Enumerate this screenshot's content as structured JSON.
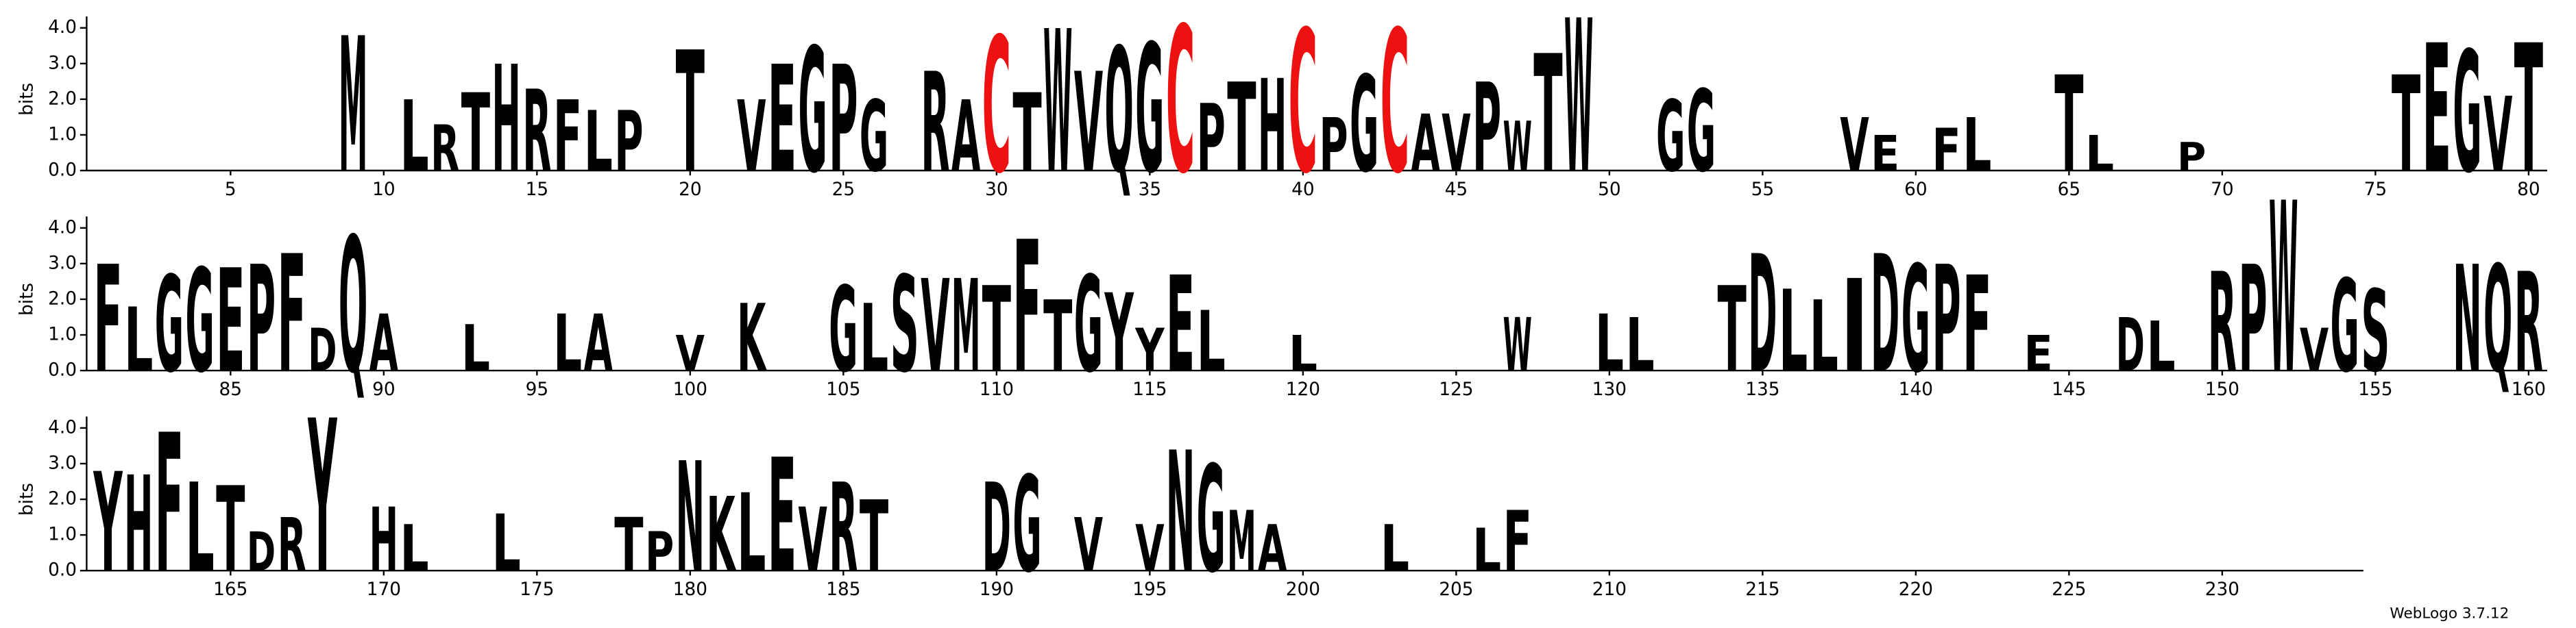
{
  "chart_data": {
    "type": "sequence-logo",
    "y_label": "bits",
    "credit": "WebLogo 3.7.12",
    "xlim": [
      0.5,
      234.5
    ],
    "ylim": [
      0,
      4.32
    ],
    "yticks": [
      {
        "value": 0,
        "label": "0.0"
      },
      {
        "value": 1,
        "label": "1.0"
      },
      {
        "value": 2,
        "label": "2.0"
      },
      {
        "value": 3,
        "label": "3.0"
      },
      {
        "value": 4,
        "label": "4.0"
      }
    ],
    "xticks": [
      5,
      10,
      15,
      20,
      25,
      30,
      35,
      40,
      45,
      50,
      55,
      60,
      65,
      70,
      75,
      80,
      85,
      90,
      95,
      100,
      105,
      110,
      115,
      120,
      125,
      130,
      135,
      140,
      145,
      150,
      155,
      160,
      165,
      170,
      175,
      180,
      185,
      190,
      195,
      200,
      205,
      210,
      215,
      220,
      225,
      230
    ],
    "color": "#000000",
    "letter_colors": {
      "C": "#ee1111"
    },
    "positions": [
      9,
      11,
      12,
      13,
      14,
      15,
      16,
      17,
      18,
      20,
      22,
      23,
      24,
      25,
      26,
      28,
      29,
      30,
      31,
      32,
      33,
      34,
      35,
      36,
      37,
      38,
      39,
      40,
      41,
      42,
      43,
      44,
      45,
      46,
      47,
      48,
      49,
      52,
      53,
      58,
      59,
      61,
      62,
      65,
      66,
      69,
      76,
      77,
      78,
      79,
      80,
      81,
      82,
      83,
      84,
      85,
      86,
      87,
      88,
      89,
      90,
      93,
      96,
      97,
      100,
      102,
      105,
      106,
      107,
      108,
      109,
      110,
      111,
      112,
      113,
      114,
      115,
      116,
      117,
      120,
      127,
      130,
      131,
      134,
      135,
      136,
      137,
      138,
      139,
      140,
      141,
      142,
      144,
      147,
      148,
      150,
      151,
      152,
      153,
      154,
      155,
      158,
      159,
      160,
      161,
      162,
      163,
      164,
      165,
      166,
      167,
      168,
      170,
      171,
      174,
      178,
      179,
      180,
      181,
      182,
      183,
      184,
      185,
      186,
      190,
      191,
      193,
      195,
      196,
      197,
      198,
      199,
      203,
      206,
      207
    ],
    "letters": [
      "M",
      "L",
      "R",
      "T",
      "H",
      "R",
      "F",
      "L",
      "P",
      "T",
      "V",
      "E",
      "G",
      "P",
      "G",
      "R",
      "A",
      "C",
      "T",
      "W",
      "V",
      "Q",
      "G",
      "C",
      "P",
      "T",
      "H",
      "C",
      "P",
      "G",
      "C",
      "A",
      "V",
      "P",
      "W",
      "T",
      "W",
      "G",
      "G",
      "V",
      "E",
      "F",
      "L",
      "T",
      "L",
      "P",
      "T",
      "E",
      "G",
      "V",
      "T",
      "F",
      "L",
      "G",
      "G",
      "E",
      "P",
      "F",
      "D",
      "Q",
      "A",
      "L",
      "L",
      "A",
      "V",
      "K",
      "G",
      "L",
      "S",
      "V",
      "M",
      "T",
      "F",
      "T",
      "G",
      "Y",
      "Y",
      "E",
      "L",
      "L",
      "W",
      "L",
      "L",
      "T",
      "D",
      "L",
      "L",
      "I",
      "D",
      "G",
      "P",
      "F",
      "E",
      "D",
      "L",
      "R",
      "P",
      "W",
      "V",
      "G",
      "S",
      "N",
      "Q",
      "R",
      "Y",
      "H",
      "F",
      "L",
      "T",
      "D",
      "R",
      "Y",
      "H",
      "L",
      "L",
      "T",
      "P",
      "N",
      "K",
      "L",
      "E",
      "V",
      "R",
      "T",
      "D",
      "G",
      "V",
      "V",
      "N",
      "G",
      "M",
      "A",
      "L",
      "L",
      "F"
    ],
    "values": [
      3.8,
      2.0,
      1.3,
      2.2,
      3.0,
      2.3,
      2.0,
      1.7,
      1.7,
      3.4,
      2.0,
      3.0,
      3.5,
      3.0,
      2.0,
      2.8,
      2.0,
      3.8,
      2.2,
      4.0,
      2.8,
      3.5,
      3.6,
      4.1,
      1.9,
      2.5,
      2.6,
      4.0,
      1.5,
      2.7,
      4.0,
      1.6,
      1.6,
      2.5,
      1.4,
      3.3,
      4.3,
      2.0,
      2.3,
      1.5,
      1.0,
      1.2,
      1.5,
      2.7,
      1.0,
      0.8,
      2.7,
      3.6,
      3.4,
      2.1,
      3.6,
      3.0,
      1.8,
      2.7,
      2.9,
      2.9,
      3.0,
      3.3,
      1.2,
      3.8,
      1.6,
      1.3,
      1.6,
      1.6,
      1.0,
      1.9,
      2.4,
      1.9,
      2.7,
      2.6,
      2.6,
      2.4,
      3.7,
      2.0,
      2.7,
      2.2,
      1.2,
      2.7,
      1.7,
      1.0,
      1.5,
      1.6,
      1.5,
      2.4,
      3.3,
      2.3,
      2.0,
      2.6,
      3.3,
      3.0,
      3.0,
      2.7,
      1.0,
      1.5,
      1.4,
      2.8,
      3.0,
      4.8,
      1.2,
      2.6,
      2.3,
      3.0,
      3.0,
      2.8,
      2.8,
      2.7,
      3.9,
      2.5,
      2.4,
      1.1,
      1.5,
      4.3,
      1.8,
      1.3,
      1.6,
      1.5,
      1.1,
      3.1,
      2.1,
      2.2,
      3.2,
      1.8,
      2.5,
      2.0,
      2.5,
      2.7,
      1.5,
      1.3,
      3.4,
      3.0,
      1.7,
      1.3,
      1.3,
      1.2,
      1.7
    ]
  }
}
